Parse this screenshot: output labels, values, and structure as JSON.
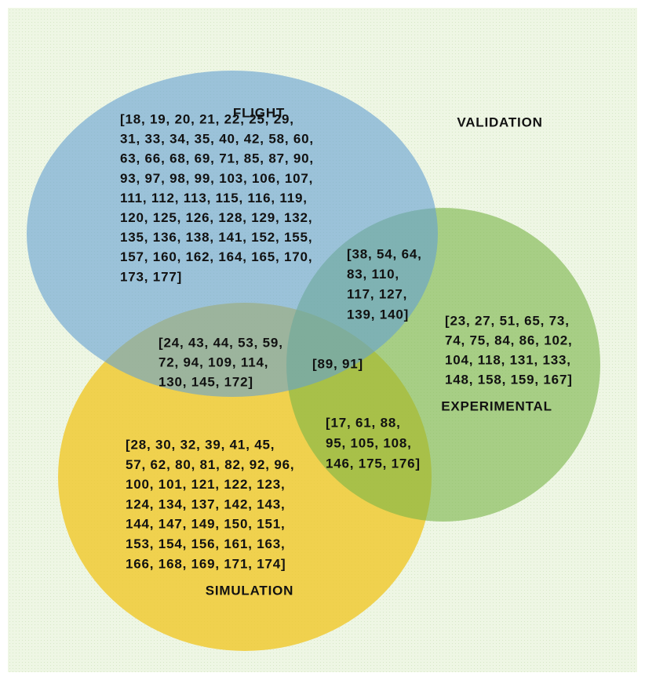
{
  "title": "VALIDATION",
  "sets": [
    {
      "label": "FLIGHT"
    },
    {
      "label": "EXPERIMENTAL"
    },
    {
      "label": "SIMULATION"
    }
  ],
  "regions": [
    {
      "lines": [
        "[18, 19, 20, 21, 22, 25, 29,",
        "31, 33, 34, 35, 40, 42, 58, 60,",
        "63, 66, 68, 69, 71, 85, 87, 90,",
        "93, 97, 98, 99, 103, 106, 107,",
        "111, 112, 113, 115, 116, 119,",
        "120, 125, 126, 128, 129, 132,",
        "135, 136, 138, 141, 152, 155,",
        "157, 160, 162, 164, 165, 170,",
        "173, 177]"
      ]
    },
    {
      "lines": [
        "[38, 54, 64,",
        "83, 110,",
        "117, 127,",
        "139, 140]"
      ]
    },
    {
      "lines": [
        "[23, 27, 51, 65, 73,",
        "74, 75, 84, 86, 102,",
        "104, 118, 131, 133,",
        "148, 158, 159, 167]"
      ]
    },
    {
      "lines": [
        "[24, 43, 44, 53, 59,",
        "72, 94, 109, 114,",
        "130, 145, 172]"
      ]
    },
    {
      "lines": [
        "[89, 91]"
      ]
    },
    {
      "lines": [
        "[17, 61, 88,",
        "95, 105, 108,",
        "146, 175, 176]"
      ]
    },
    {
      "lines": [
        "[28, 30, 32, 39, 41, 45,",
        "57, 62, 80, 81, 82, 92, 96,",
        "100, 101, 121, 122, 123,",
        "124, 134, 137, 142, 143,",
        "144, 147, 149, 150, 151,",
        "153, 154, 156, 161, 163,",
        "166, 168, 169, 171, 174]"
      ]
    }
  ]
}
